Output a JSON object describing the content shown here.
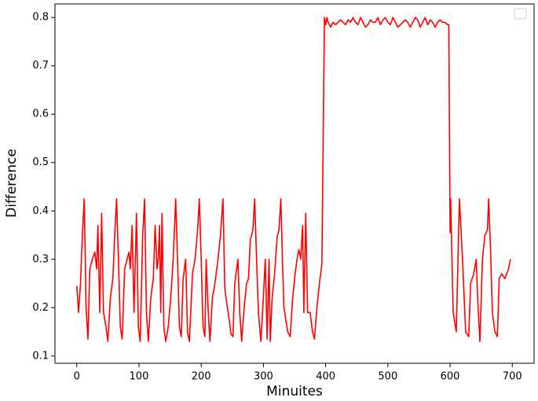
{
  "chart_data": {
    "type": "line",
    "x_label": "Minuites",
    "y_label": "Difference",
    "xlim": [
      -35,
      735
    ],
    "ylim": [
      0.085,
      0.828
    ],
    "xticks": [
      0,
      100,
      200,
      300,
      400,
      500,
      600,
      700
    ],
    "yticks": [
      0.1,
      0.2,
      0.3,
      0.4,
      0.5,
      0.6,
      0.7,
      0.8
    ],
    "x": [
      0,
      3,
      6,
      9,
      12,
      15,
      18,
      21,
      25,
      29,
      32,
      34,
      37,
      40,
      43,
      47,
      50,
      54,
      58,
      61,
      64,
      67,
      70,
      73,
      77,
      81,
      84,
      86,
      89,
      92,
      96,
      99,
      102,
      106,
      109,
      112,
      115,
      119,
      123,
      126,
      129,
      131,
      133,
      135,
      137,
      140,
      143,
      147,
      151,
      155,
      159,
      162,
      165,
      168,
      171,
      175,
      178,
      181,
      186,
      190,
      194,
      197,
      200,
      203,
      206,
      208,
      211,
      214,
      218,
      222,
      227,
      231,
      235,
      238,
      241,
      245,
      248,
      251,
      254,
      259,
      262,
      265,
      269,
      273,
      276,
      279,
      283,
      286,
      289,
      292,
      296,
      299,
      303,
      306,
      309,
      311,
      314,
      318,
      322,
      325,
      328,
      331,
      333,
      336,
      339,
      343,
      347,
      351,
      354,
      357,
      360,
      363,
      365,
      368,
      371,
      375,
      379,
      382,
      386,
      390,
      394,
      398,
      400,
      402,
      404,
      408,
      412,
      416,
      420,
      424,
      428,
      432,
      436,
      440,
      444,
      448,
      452,
      456,
      460,
      464,
      468,
      472,
      476,
      480,
      484,
      488,
      492,
      496,
      500,
      504,
      508,
      512,
      516,
      520,
      524,
      528,
      532,
      536,
      540,
      544,
      548,
      552,
      556,
      560,
      564,
      568,
      572,
      576,
      580,
      584,
      588,
      592,
      596,
      598,
      600,
      601,
      602,
      605,
      610,
      615,
      620,
      625,
      630,
      633,
      638,
      642,
      645,
      648,
      652,
      656,
      660,
      662,
      665,
      668,
      672,
      676,
      679,
      683,
      688,
      694,
      697
    ],
    "series": [
      {
        "color": "#ff0000",
        "values": [
          0.245,
          0.19,
          0.25,
          0.35,
          0.425,
          0.2,
          0.135,
          0.28,
          0.3,
          0.315,
          0.28,
          0.37,
          0.19,
          0.395,
          0.19,
          0.16,
          0.13,
          0.22,
          0.26,
          0.35,
          0.425,
          0.3,
          0.16,
          0.135,
          0.28,
          0.3,
          0.315,
          0.28,
          0.37,
          0.19,
          0.395,
          0.16,
          0.13,
          0.35,
          0.425,
          0.19,
          0.13,
          0.22,
          0.26,
          0.37,
          0.28,
          0.3,
          0.37,
          0.19,
          0.395,
          0.16,
          0.13,
          0.16,
          0.22,
          0.3,
          0.425,
          0.3,
          0.16,
          0.14,
          0.26,
          0.3,
          0.15,
          0.13,
          0.27,
          0.3,
          0.355,
          0.425,
          0.3,
          0.16,
          0.14,
          0.3,
          0.2,
          0.13,
          0.22,
          0.25,
          0.3,
          0.35,
          0.425,
          0.24,
          0.21,
          0.175,
          0.145,
          0.14,
          0.25,
          0.3,
          0.19,
          0.13,
          0.2,
          0.25,
          0.26,
          0.34,
          0.36,
          0.425,
          0.3,
          0.19,
          0.13,
          0.2,
          0.3,
          0.135,
          0.3,
          0.13,
          0.22,
          0.27,
          0.345,
          0.36,
          0.425,
          0.28,
          0.2,
          0.175,
          0.15,
          0.14,
          0.22,
          0.27,
          0.3,
          0.32,
          0.3,
          0.37,
          0.19,
          0.395,
          0.19,
          0.19,
          0.15,
          0.135,
          0.2,
          0.25,
          0.29,
          0.8,
          0.785,
          0.8,
          0.79,
          0.78,
          0.79,
          0.785,
          0.79,
          0.795,
          0.79,
          0.785,
          0.795,
          0.79,
          0.8,
          0.79,
          0.785,
          0.8,
          0.79,
          0.78,
          0.785,
          0.795,
          0.79,
          0.79,
          0.8,
          0.785,
          0.795,
          0.8,
          0.79,
          0.785,
          0.8,
          0.79,
          0.78,
          0.785,
          0.79,
          0.795,
          0.79,
          0.78,
          0.79,
          0.8,
          0.795,
          0.78,
          0.79,
          0.8,
          0.785,
          0.795,
          0.79,
          0.78,
          0.79,
          0.795,
          0.79,
          0.79,
          0.785,
          0.785,
          0.355,
          0.425,
          0.36,
          0.19,
          0.15,
          0.425,
          0.3,
          0.15,
          0.14,
          0.25,
          0.27,
          0.3,
          0.2,
          0.13,
          0.3,
          0.35,
          0.36,
          0.425,
          0.32,
          0.19,
          0.15,
          0.14,
          0.26,
          0.27,
          0.26,
          0.28,
          0.3
        ]
      }
    ]
  }
}
